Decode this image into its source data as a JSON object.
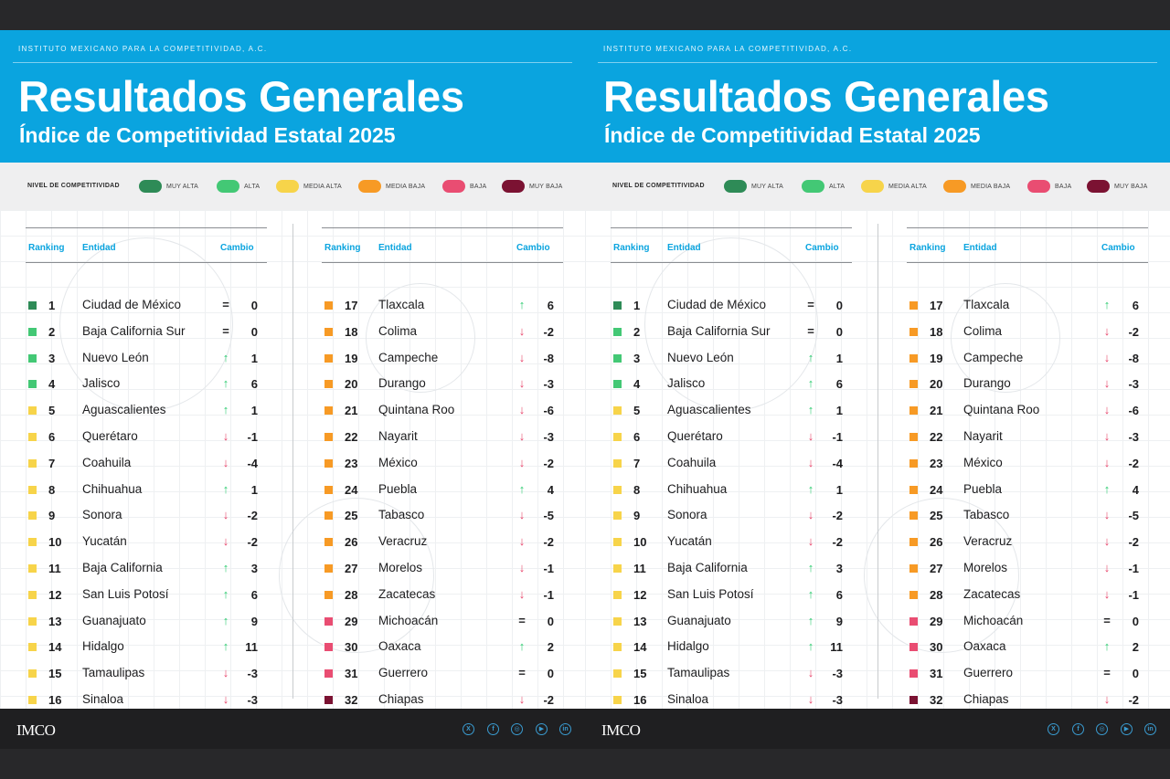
{
  "header": {
    "institute": "INSTITUTO MEXICANO PARA LA COMPETITIVIDAD, A.C.",
    "title": "Resultados Generales",
    "subtitle": "Índice de Competitividad Estatal 2025"
  },
  "legend": {
    "label": "NIVEL DE COMPETITIVIDAD",
    "items": [
      {
        "label": "MUY ALTA",
        "color": "#2e8b57"
      },
      {
        "label": "ALTA",
        "color": "#43c875"
      },
      {
        "label": "MEDIA ALTA",
        "color": "#f7d44a"
      },
      {
        "label": "MEDIA BAJA",
        "color": "#f79a25"
      },
      {
        "label": "BAJA",
        "color": "#e94d72"
      },
      {
        "label": "MUY BAJA",
        "color": "#7b1232"
      }
    ]
  },
  "table": {
    "headers": {
      "ranking": "Ranking",
      "entidad": "Entidad",
      "cambio": "Cambio"
    },
    "rows": [
      {
        "rank": "1",
        "name": "Ciudad de México",
        "dir": "eq",
        "change": "0",
        "level": 0
      },
      {
        "rank": "2",
        "name": "Baja California Sur",
        "dir": "eq",
        "change": "0",
        "level": 1
      },
      {
        "rank": "3",
        "name": "Nuevo León",
        "dir": "up",
        "change": "1",
        "level": 1
      },
      {
        "rank": "4",
        "name": "Jalisco",
        "dir": "up",
        "change": "6",
        "level": 1
      },
      {
        "rank": "5",
        "name": "Aguascalientes",
        "dir": "up",
        "change": "1",
        "level": 2
      },
      {
        "rank": "6",
        "name": "Querétaro",
        "dir": "down",
        "change": "-1",
        "level": 2
      },
      {
        "rank": "7",
        "name": "Coahuila",
        "dir": "down",
        "change": "-4",
        "level": 2
      },
      {
        "rank": "8",
        "name": "Chihuahua",
        "dir": "up",
        "change": "1",
        "level": 2
      },
      {
        "rank": "9",
        "name": "Sonora",
        "dir": "down",
        "change": "-2",
        "level": 2
      },
      {
        "rank": "10",
        "name": "Yucatán",
        "dir": "down",
        "change": "-2",
        "level": 2
      },
      {
        "rank": "11",
        "name": "Baja California",
        "dir": "up",
        "change": "3",
        "level": 2
      },
      {
        "rank": "12",
        "name": "San Luis Potosí",
        "dir": "up",
        "change": "6",
        "level": 2
      },
      {
        "rank": "13",
        "name": "Guanajuato",
        "dir": "up",
        "change": "9",
        "level": 2
      },
      {
        "rank": "14",
        "name": "Hidalgo",
        "dir": "up",
        "change": "11",
        "level": 2
      },
      {
        "rank": "15",
        "name": "Tamaulipas",
        "dir": "down",
        "change": "-3",
        "level": 2
      },
      {
        "rank": "16",
        "name": "Sinaloa",
        "dir": "down",
        "change": "-3",
        "level": 2
      },
      {
        "rank": "17",
        "name": "Tlaxcala",
        "dir": "up",
        "change": "6",
        "level": 3
      },
      {
        "rank": "18",
        "name": "Colima",
        "dir": "down",
        "change": "-2",
        "level": 3
      },
      {
        "rank": "19",
        "name": "Campeche",
        "dir": "down",
        "change": "-8",
        "level": 3
      },
      {
        "rank": "20",
        "name": "Durango",
        "dir": "down",
        "change": "-3",
        "level": 3
      },
      {
        "rank": "21",
        "name": "Quintana Roo",
        "dir": "down",
        "change": "-6",
        "level": 3
      },
      {
        "rank": "22",
        "name": "Nayarit",
        "dir": "down",
        "change": "-3",
        "level": 3
      },
      {
        "rank": "23",
        "name": "México",
        "dir": "down",
        "change": "-2",
        "level": 3
      },
      {
        "rank": "24",
        "name": "Puebla",
        "dir": "up",
        "change": "4",
        "level": 3
      },
      {
        "rank": "25",
        "name": "Tabasco",
        "dir": "down",
        "change": "-5",
        "level": 3
      },
      {
        "rank": "26",
        "name": "Veracruz",
        "dir": "down",
        "change": "-2",
        "level": 3
      },
      {
        "rank": "27",
        "name": "Morelos",
        "dir": "down",
        "change": "-1",
        "level": 3
      },
      {
        "rank": "28",
        "name": "Zacatecas",
        "dir": "down",
        "change": "-1",
        "level": 3
      },
      {
        "rank": "29",
        "name": "Michoacán",
        "dir": "eq",
        "change": "0",
        "level": 4
      },
      {
        "rank": "30",
        "name": "Oaxaca",
        "dir": "up",
        "change": "2",
        "level": 4
      },
      {
        "rank": "31",
        "name": "Guerrero",
        "dir": "eq",
        "change": "0",
        "level": 4
      },
      {
        "rank": "32",
        "name": "Chiapas",
        "dir": "down",
        "change": "-2",
        "level": 5
      }
    ]
  },
  "footer": {
    "logo": "IMCO",
    "social_icons": [
      "x-icon",
      "facebook-icon",
      "instagram-icon",
      "youtube-icon",
      "linkedin-icon"
    ]
  }
}
